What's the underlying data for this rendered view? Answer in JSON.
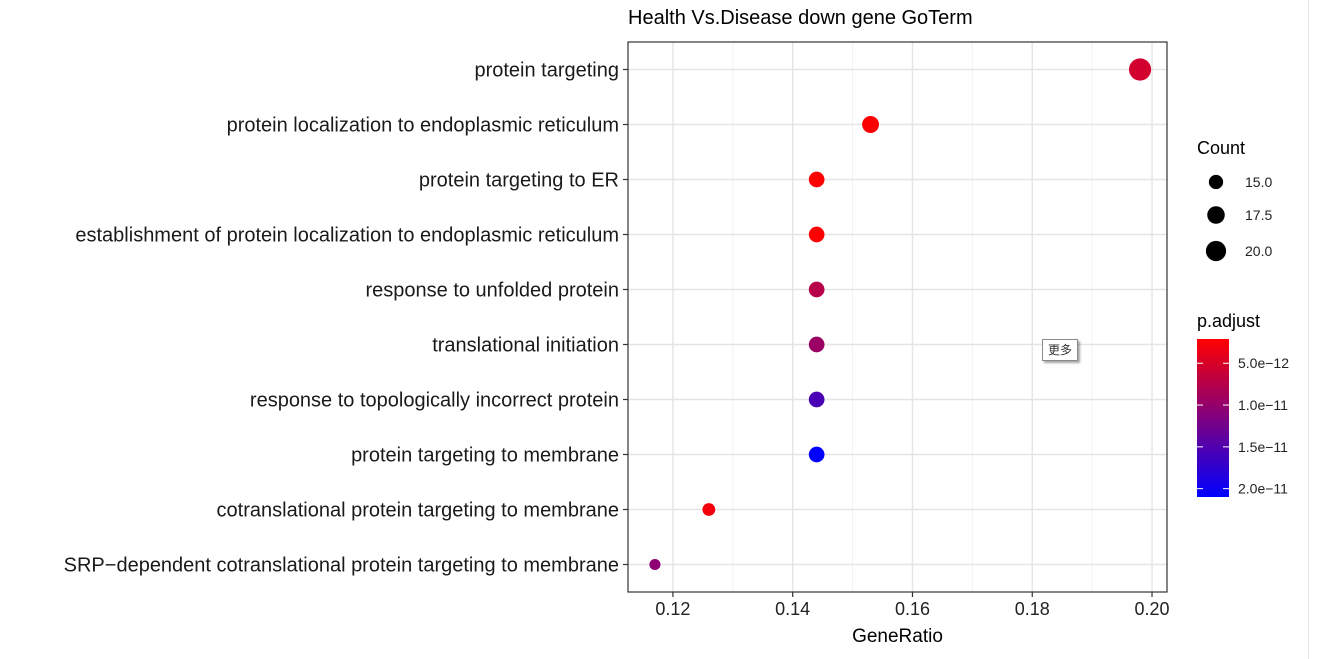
{
  "chart_data": {
    "type": "scatter",
    "title": "Health Vs.Disease down gene GoTerm",
    "xlabel": "GeneRatio",
    "ylabel": "",
    "xlim": [
      0.1125,
      0.2025
    ],
    "x_ticks": [
      0.12,
      0.14,
      0.16,
      0.18,
      0.2
    ],
    "x_tick_labels": [
      "0.12",
      "0.14",
      "0.16",
      "0.18",
      "0.20"
    ],
    "grid": true,
    "categories": [
      "protein targeting",
      "protein localization to endoplasmic reticulum",
      "protein targeting to ER",
      "establishment of protein localization to endoplasmic reticulum",
      "response to unfolded protein",
      "translational initiation",
      "response to topologically incorrect protein",
      "protein targeting to membrane",
      "cotranslational protein targeting to membrane",
      "SRP−dependent cotranslational protein targeting to membrane"
    ],
    "points": [
      {
        "term": "protein targeting",
        "gene_ratio": 0.198,
        "count": 22,
        "p_adjust": 5.5e-12
      },
      {
        "term": "protein localization to endoplasmic reticulum",
        "gene_ratio": 0.153,
        "count": 17,
        "p_adjust": 2.5e-12
      },
      {
        "term": "protein targeting to ER",
        "gene_ratio": 0.144,
        "count": 16,
        "p_adjust": 2.2e-12
      },
      {
        "term": "establishment of protein localization to endoplasmic reticulum",
        "gene_ratio": 0.144,
        "count": 16,
        "p_adjust": 2.2e-12
      },
      {
        "term": "response to unfolded protein",
        "gene_ratio": 0.144,
        "count": 16,
        "p_adjust": 7.5e-12
      },
      {
        "term": "translational initiation",
        "gene_ratio": 0.144,
        "count": 16,
        "p_adjust": 9.5e-12
      },
      {
        "term": "response to topologically incorrect protein",
        "gene_ratio": 0.144,
        "count": 16,
        "p_adjust": 1.55e-11
      },
      {
        "term": "protein targeting to membrane",
        "gene_ratio": 0.144,
        "count": 16,
        "p_adjust": 2.1e-11
      },
      {
        "term": "cotranslational protein targeting to membrane",
        "gene_ratio": 0.126,
        "count": 14,
        "p_adjust": 3e-12
      },
      {
        "term": "SRP−dependent cotranslational protein targeting to membrane",
        "gene_ratio": 0.117,
        "count": 13,
        "p_adjust": 1.05e-11
      }
    ],
    "legend_size": {
      "title": "Count",
      "entries": [
        {
          "label": "15.0",
          "value": 15.0
        },
        {
          "label": "17.5",
          "value": 17.5
        },
        {
          "label": "20.0",
          "value": 20.0
        }
      ]
    },
    "legend_color": {
      "title": "p.adjust",
      "range": [
        2.1e-12,
        2.1e-11
      ],
      "ticks": [
        {
          "label": "5.0e−12",
          "value": 5e-12
        },
        {
          "label": "1.0e−11",
          "value": 1e-11
        },
        {
          "label": "1.5e−11",
          "value": 1.5e-11
        },
        {
          "label": "2.0e−11",
          "value": 2e-11
        }
      ],
      "low_color": "#ff0000",
      "high_color": "#0000ff"
    },
    "legend_position": "right"
  },
  "overlay": {
    "more_label": "更多"
  }
}
